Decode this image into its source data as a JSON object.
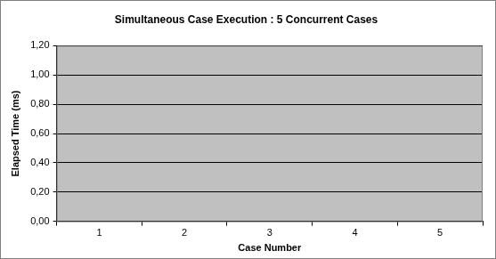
{
  "chart_data": {
    "type": "bar",
    "title": "Simultaneous Case Execution : 5 Concurrent Cases",
    "x_label": "Case Number",
    "y_label": "Elapsed Time (ms)",
    "categories": [
      "1",
      "2",
      "3",
      "4",
      "5"
    ],
    "values": [
      0,
      0,
      0,
      0,
      0
    ],
    "color": "#9999ff",
    "ylim": [
      0,
      1.2
    ],
    "yticks": [
      {
        "value": 0,
        "label": "0,00"
      },
      {
        "value": 0.2,
        "label": "0,20"
      },
      {
        "value": 0.4,
        "label": "0,40"
      },
      {
        "value": 0.6,
        "label": "0,60"
      },
      {
        "value": 0.8,
        "label": "0,80"
      },
      {
        "value": 1.0,
        "label": "1,00"
      },
      {
        "value": 1.2,
        "label": "1,20"
      }
    ],
    "grid": true
  }
}
